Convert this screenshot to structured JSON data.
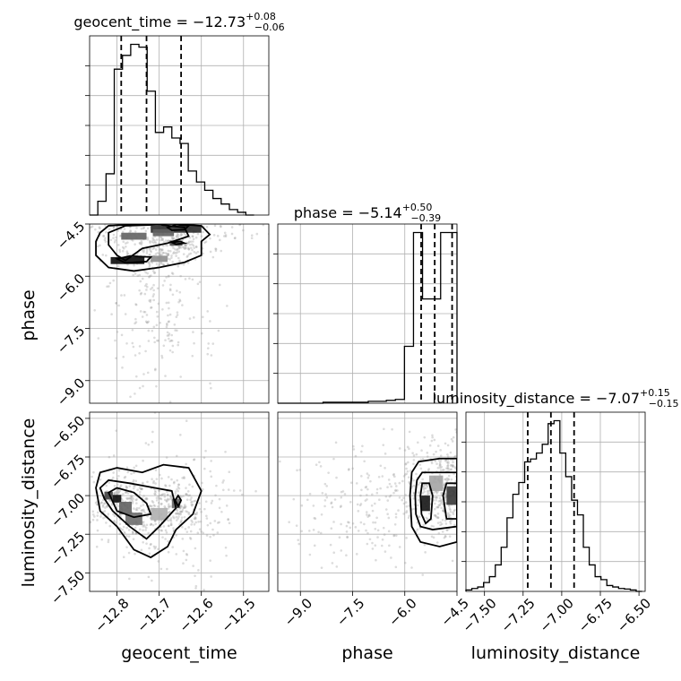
{
  "chart_data": {
    "type": "corner",
    "parameters": [
      "geocent_time",
      "phase",
      "luminosity_distance"
    ],
    "titles": {
      "geocent_time": {
        "param": "geocent_time",
        "median": "−12.73",
        "plus": "+0.08",
        "minus": "−0.06"
      },
      "phase": {
        "param": "phase",
        "median": "−5.14",
        "plus": "+0.50",
        "minus": "−0.39"
      },
      "luminosity_distance": {
        "param": "luminosity_distance",
        "median": "−7.07",
        "plus": "+0.15",
        "minus": "−0.15"
      }
    },
    "axis_labels": {
      "x": [
        "geocent_time",
        "phase",
        "luminosity_distance"
      ],
      "y": [
        "phase",
        "luminosity_distance"
      ]
    },
    "ranges": {
      "geocent_time": [
        -12.865,
        -12.44
      ],
      "phase": [
        -9.65,
        -4.5
      ],
      "luminosity_distance": [
        -7.62,
        -6.46
      ]
    },
    "ticks": {
      "geocent_time": {
        "values": [
          -12.8,
          -12.7,
          -12.6,
          -12.5
        ],
        "labels": [
          "−12.8",
          "−12.7",
          "−12.6",
          "−12.5"
        ]
      },
      "phase": {
        "values": [
          -9.0,
          -7.5,
          -6.0,
          -4.5
        ],
        "labels": [
          "−9.0",
          "−7.5",
          "−6.0",
          "−4.5"
        ]
      },
      "luminosity_distance": {
        "values": [
          -7.5,
          -7.25,
          -7.0,
          -6.75,
          -6.5
        ],
        "labels": [
          "−7.50",
          "−7.25",
          "−7.00",
          "−6.75",
          "−6.50"
        ]
      }
    },
    "histograms": {
      "geocent_time": {
        "edges": [
          -12.865,
          -12.8455,
          -12.826,
          -12.8065,
          -12.787,
          -12.7675,
          -12.748,
          -12.7285,
          -12.709,
          -12.6895,
          -12.67,
          -12.6505,
          -12.631,
          -12.6115,
          -12.592,
          -12.5725,
          -12.553,
          -12.5335,
          -12.514,
          -12.4945,
          -12.475
        ],
        "counts": [
          0,
          0.05,
          0.15,
          0.53,
          0.58,
          0.62,
          0.61,
          0.45,
          0.3,
          0.32,
          0.28,
          0.26,
          0.16,
          0.12,
          0.09,
          0.06,
          0.04,
          0.02,
          0.01,
          0
        ],
        "quantiles": [
          -12.79,
          -12.73,
          -12.648
        ]
      },
      "phase": {
        "edges": [
          -9.65,
          -9.39,
          -9.13,
          -8.87,
          -8.61,
          -8.35,
          -8.09,
          -7.83,
          -7.57,
          -7.31,
          -7.05,
          -6.79,
          -6.53,
          -6.27,
          -6.01,
          -5.75,
          -5.49,
          -5.23,
          -4.97,
          -4.71,
          -4.5
        ],
        "counts": [
          0,
          0,
          0,
          0,
          0,
          0.005,
          0.005,
          0.005,
          0.005,
          0.005,
          0.01,
          0.01,
          0.015,
          0.02,
          0.3,
          0.9,
          0.55,
          0.55,
          0.9,
          0.9
        ],
        "quantiles": [
          -5.53,
          -5.14,
          -4.64
        ]
      },
      "luminosity_distance": {
        "edges": [
          -7.62,
          -7.582,
          -7.544,
          -7.506,
          -7.468,
          -7.43,
          -7.392,
          -7.354,
          -7.316,
          -7.278,
          -7.24,
          -7.202,
          -7.164,
          -7.126,
          -7.088,
          -7.05,
          -7.012,
          -6.974,
          -6.936,
          -6.898,
          -6.86,
          -6.822,
          -6.784,
          -6.746,
          -6.708,
          -6.67,
          -6.632,
          -6.594,
          -6.556,
          -6.518,
          -6.48
        ],
        "counts": [
          0.005,
          0.01,
          0.015,
          0.03,
          0.05,
          0.09,
          0.15,
          0.25,
          0.33,
          0.37,
          0.44,
          0.45,
          0.47,
          0.5,
          0.57,
          0.58,
          0.47,
          0.39,
          0.31,
          0.26,
          0.15,
          0.09,
          0.05,
          0.04,
          0.02,
          0.015,
          0.01,
          0.008,
          0.005,
          0
        ],
        "quantiles": [
          -7.22,
          -7.07,
          -6.92
        ]
      }
    },
    "pair_panels": [
      {
        "x": "geocent_time",
        "y": "phase",
        "density_peaks": [
          {
            "x": -12.775,
            "y": -5.55,
            "w": 0.08,
            "h": 0.2,
            "level": 1.0
          },
          {
            "x": -12.66,
            "y": -4.65,
            "w": 0.12,
            "h": 0.2,
            "level": 0.85
          },
          {
            "x": -12.76,
            "y": -4.85,
            "w": 0.06,
            "h": 0.2,
            "level": 0.6
          },
          {
            "x": -12.69,
            "y": -4.75,
            "w": 0.05,
            "h": 0.2,
            "level": 0.6
          },
          {
            "x": -12.7,
            "y": -5.5,
            "w": 0.04,
            "h": 0.18,
            "level": 0.4
          },
          {
            "x": -12.66,
            "y": -5.05,
            "w": 0.03,
            "h": 0.15,
            "level": 0.7
          }
        ],
        "contours": [
          [
            [
              -12.84,
              -4.75
            ],
            [
              -12.82,
              -4.55
            ],
            [
              -12.74,
              -4.5
            ],
            [
              -12.66,
              -4.5
            ],
            [
              -12.6,
              -4.55
            ],
            [
              -12.58,
              -4.8
            ],
            [
              -12.6,
              -5.0
            ],
            [
              -12.6,
              -5.4
            ],
            [
              -12.64,
              -5.6
            ],
            [
              -12.7,
              -5.75
            ],
            [
              -12.76,
              -5.85
            ],
            [
              -12.82,
              -5.75
            ],
            [
              -12.85,
              -5.4
            ],
            [
              -12.85,
              -5.0
            ]
          ],
          [
            [
              -12.82,
              -4.75
            ],
            [
              -12.78,
              -4.55
            ],
            [
              -12.7,
              -4.52
            ],
            [
              -12.64,
              -4.6
            ],
            [
              -12.63,
              -4.85
            ],
            [
              -12.68,
              -5.05
            ],
            [
              -12.74,
              -5.2
            ],
            [
              -12.78,
              -5.55
            ],
            [
              -12.8,
              -5.4
            ],
            [
              -12.82,
              -5.1
            ]
          ],
          [
            [
              -12.8,
              -5.5
            ],
            [
              -12.77,
              -5.42
            ],
            [
              -12.72,
              -5.45
            ],
            [
              -12.73,
              -5.58
            ],
            [
              -12.78,
              -5.62
            ]
          ],
          [
            [
              -12.68,
              -4.6
            ],
            [
              -12.66,
              -4.52
            ],
            [
              -12.63,
              -4.55
            ],
            [
              -12.64,
              -4.66
            ],
            [
              -12.67,
              -4.68
            ]
          ],
          [
            [
              -12.67,
              -5.03
            ],
            [
              -12.65,
              -5.0
            ],
            [
              -12.64,
              -5.05
            ],
            [
              -12.66,
              -5.08
            ]
          ]
        ],
        "sample_region": {
          "x": [
            -12.84,
            -12.56
          ],
          "y": [
            -9.3,
            -4.5
          ]
        }
      },
      {
        "x": "geocent_time",
        "y": "luminosity_distance",
        "density_peaks": [
          {
            "x": -12.82,
            "y": -7.0,
            "w": 0.02,
            "h": 0.05,
            "level": 0.75
          },
          {
            "x": -12.8,
            "y": -7.02,
            "w": 0.02,
            "h": 0.05,
            "level": 1.0
          },
          {
            "x": -12.78,
            "y": -7.08,
            "w": 0.03,
            "h": 0.08,
            "level": 0.6
          },
          {
            "x": -12.76,
            "y": -7.15,
            "w": 0.04,
            "h": 0.08,
            "level": 0.55
          },
          {
            "x": -12.7,
            "y": -7.12,
            "w": 0.04,
            "h": 0.08,
            "level": 0.25
          },
          {
            "x": -12.66,
            "y": -7.05,
            "w": 0.02,
            "h": 0.06,
            "level": 0.6
          }
        ],
        "contours": [
          [
            [
              -12.85,
              -6.95
            ],
            [
              -12.84,
              -6.85
            ],
            [
              -12.8,
              -6.82
            ],
            [
              -12.74,
              -6.85
            ],
            [
              -12.69,
              -6.8
            ],
            [
              -12.63,
              -6.82
            ],
            [
              -12.6,
              -6.97
            ],
            [
              -12.62,
              -7.12
            ],
            [
              -12.66,
              -7.22
            ],
            [
              -12.68,
              -7.33
            ],
            [
              -12.72,
              -7.4
            ],
            [
              -12.76,
              -7.35
            ],
            [
              -12.8,
              -7.2
            ],
            [
              -12.84,
              -7.1
            ]
          ],
          [
            [
              -12.84,
              -6.95
            ],
            [
              -12.82,
              -6.9
            ],
            [
              -12.77,
              -6.92
            ],
            [
              -12.71,
              -6.95
            ],
            [
              -12.67,
              -6.97
            ],
            [
              -12.66,
              -7.08
            ],
            [
              -12.7,
              -7.2
            ],
            [
              -12.73,
              -7.28
            ],
            [
              -12.77,
              -7.2
            ],
            [
              -12.81,
              -7.1
            ],
            [
              -12.83,
              -7.02
            ]
          ],
          [
            [
              -12.82,
              -6.98
            ],
            [
              -12.8,
              -6.95
            ],
            [
              -12.76,
              -6.98
            ],
            [
              -12.73,
              -7.05
            ],
            [
              -12.72,
              -7.12
            ],
            [
              -12.76,
              -7.14
            ],
            [
              -12.8,
              -7.1
            ]
          ],
          [
            [
              -12.662,
              -7.03
            ],
            [
              -12.655,
              -7.0
            ],
            [
              -12.648,
              -7.03
            ],
            [
              -12.655,
              -7.07
            ]
          ]
        ],
        "sample_region": {
          "x": [
            -12.86,
            -12.5
          ],
          "y": [
            -7.55,
            -6.65
          ]
        }
      },
      {
        "x": "phase",
        "y": "luminosity_distance",
        "density_peaks": [
          {
            "x": -5.4,
            "y": -7.05,
            "w": 0.25,
            "h": 0.1,
            "level": 0.95
          },
          {
            "x": -4.65,
            "y": -7.0,
            "w": 0.3,
            "h": 0.12,
            "level": 0.8
          },
          {
            "x": -5.1,
            "y": -6.92,
            "w": 0.4,
            "h": 0.1,
            "level": 0.3
          }
        ],
        "contours": [
          [
            [
              -5.85,
              -7.0
            ],
            [
              -5.8,
              -6.85
            ],
            [
              -5.6,
              -6.78
            ],
            [
              -5.0,
              -6.76
            ],
            [
              -4.5,
              -6.76
            ],
            [
              -4.5,
              -7.3
            ],
            [
              -5.0,
              -7.33
            ],
            [
              -5.55,
              -7.3
            ],
            [
              -5.8,
              -7.2
            ]
          ],
          [
            [
              -5.7,
              -7.0
            ],
            [
              -5.65,
              -6.9
            ],
            [
              -5.5,
              -6.85
            ],
            [
              -5.2,
              -6.85
            ],
            [
              -4.5,
              -6.85
            ],
            [
              -4.5,
              -7.2
            ],
            [
              -5.2,
              -7.22
            ],
            [
              -5.55,
              -7.2
            ],
            [
              -5.68,
              -7.12
            ]
          ],
          [
            [
              -5.55,
              -7.0
            ],
            [
              -5.5,
              -6.92
            ],
            [
              -5.3,
              -6.92
            ],
            [
              -5.2,
              -7.0
            ],
            [
              -5.25,
              -7.15
            ],
            [
              -5.4,
              -7.18
            ],
            [
              -5.52,
              -7.12
            ]
          ],
          [
            [
              -4.9,
              -7.0
            ],
            [
              -4.8,
              -6.92
            ],
            [
              -4.5,
              -6.92
            ],
            [
              -4.5,
              -7.15
            ],
            [
              -4.8,
              -7.15
            ]
          ]
        ],
        "sample_region": {
          "x": [
            -9.2,
            -4.5
          ],
          "y": [
            -7.45,
            -6.7
          ]
        }
      }
    ],
    "grid": true
  }
}
